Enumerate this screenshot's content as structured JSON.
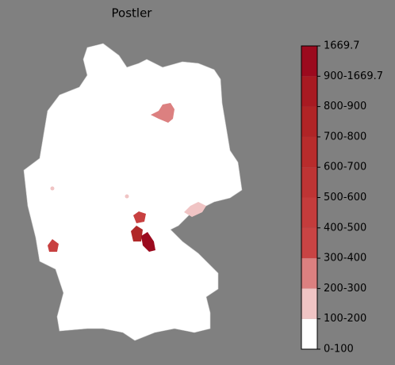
{
  "title": "Postler",
  "colorbar": {
    "labels": [
      "0-100",
      "100-200",
      "200-300",
      "300-400",
      "400-500",
      "500-600",
      "600-700",
      "700-800",
      "800-900",
      "900-1669.7",
      "1669.7"
    ],
    "colors": [
      "#ffffff",
      "#f0c4c4",
      "#dc8080",
      "#c94444",
      "#c43c3c",
      "#be3434",
      "#b82c2c",
      "#b02426",
      "#a81a22",
      "#9b0a1e"
    ]
  }
}
